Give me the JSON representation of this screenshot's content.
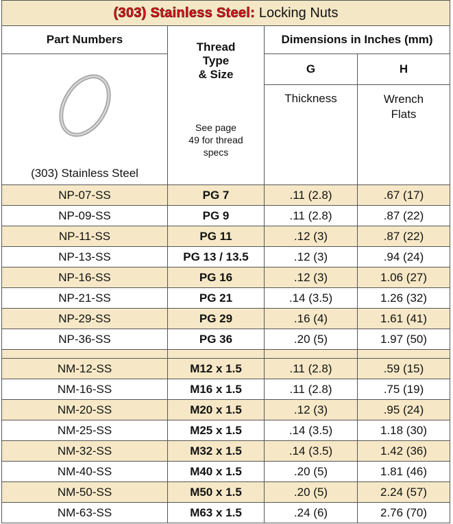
{
  "header": {
    "title_brand": "(303) Stainless Steel:",
    "title_rest": "Locking Nuts"
  },
  "columns": {
    "part": "Part Numbers",
    "thread": "Thread",
    "thread_sub": "Type\n& Size",
    "dims": "Dimensions in Inches (mm)",
    "g": "G",
    "h": "H",
    "g_desc": "Thickness",
    "h_desc": "Wrench\nFlats",
    "thread_note": "See page\n49 for thread\nspecs",
    "image_caption": "(303) Stainless Steel"
  },
  "table": {
    "groups": [
      [
        [
          "NP-07-SS",
          "PG 7",
          ".11 (2.8)",
          ".67 (17)"
        ],
        [
          "NP-09-SS",
          "PG 9",
          ".11 (2.8)",
          ".87 (22)"
        ],
        [
          "NP-11-SS",
          "PG 11",
          ".12 (3)",
          ".87 (22)"
        ],
        [
          "NP-13-SS",
          "PG 13 / 13.5",
          ".12 (3)",
          ".94 (24)"
        ],
        [
          "NP-16-SS",
          "PG 16",
          ".12 (3)",
          "1.06 (27)"
        ],
        [
          "NP-21-SS",
          "PG 21",
          ".14 (3.5)",
          "1.26 (32)"
        ],
        [
          "NP-29-SS",
          "PG 29",
          ".16 (4)",
          "1.61 (41)"
        ],
        [
          "NP-36-SS",
          "PG 36",
          ".20 (5)",
          "1.97 (50)"
        ]
      ],
      [
        [
          "NM-12-SS",
          "M12 x 1.5",
          ".11 (2.8)",
          ".59 (15)"
        ],
        [
          "NM-16-SS",
          "M16 x 1.5",
          ".11 (2.8)",
          ".75 (19)"
        ],
        [
          "NM-20-SS",
          "M20 x 1.5",
          ".12 (3)",
          ".95 (24)"
        ],
        [
          "NM-25-SS",
          "M25 x 1.5",
          ".14 (3.5)",
          "1.18 (30)"
        ],
        [
          "NM-32-SS",
          "M32 x 1.5",
          ".14 (3.5)",
          "1.42 (36)"
        ],
        [
          "NM-40-SS",
          "M40 x 1.5",
          ".20 (5)",
          "1.81 (46)"
        ],
        [
          "NM-50-SS",
          "M50 x 1.5",
          ".20 (5)",
          "2.24 (57)"
        ],
        [
          "NM-63-SS",
          "M63 x 1.5",
          ".24 (6)",
          "2.76 (70)"
        ]
      ]
    ]
  }
}
